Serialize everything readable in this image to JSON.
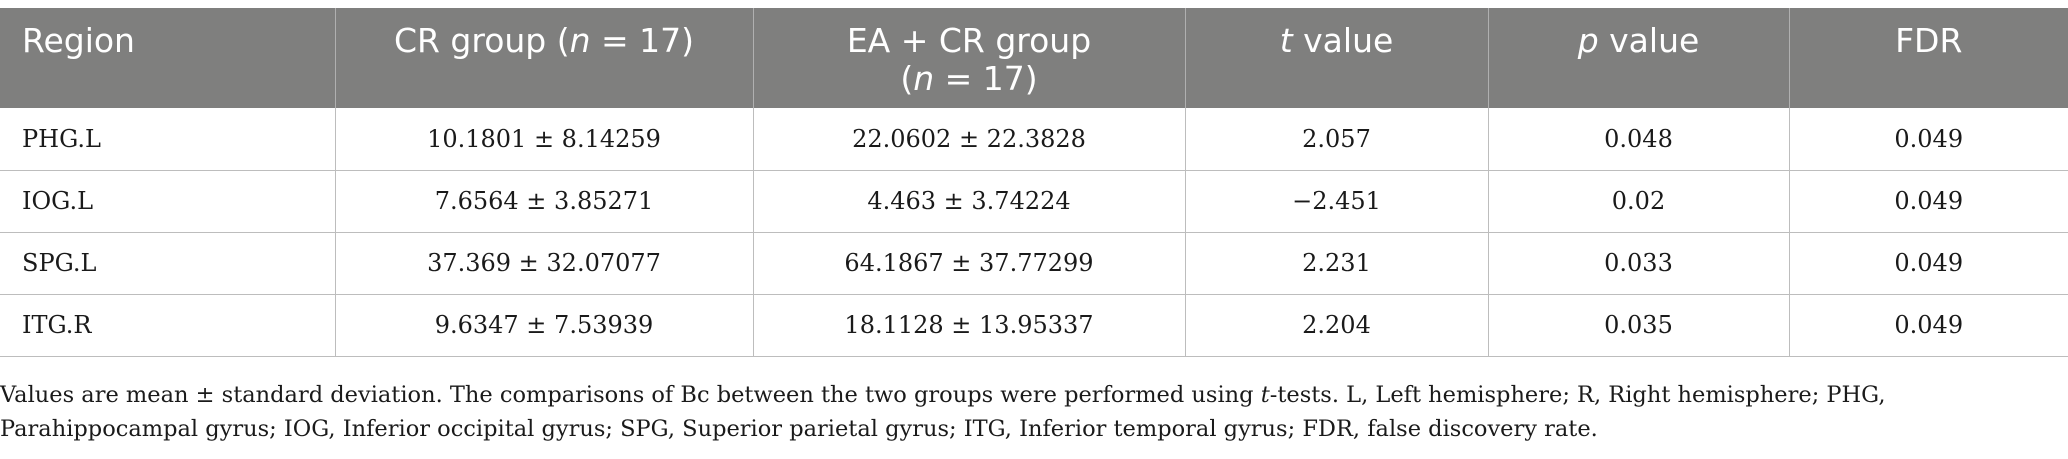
{
  "table": {
    "headers": {
      "region": "Region",
      "cr_pre": "CR group (",
      "cr_n": "n",
      "cr_post": " = 17)",
      "eacr_line1": "EA + CR group",
      "eacr_pre": "(",
      "eacr_n": "n",
      "eacr_post": " = 17)",
      "t_var": "t",
      "t_rest": " value",
      "p_var": "p",
      "p_rest": " value",
      "fdr": "FDR"
    },
    "rows": [
      {
        "region": "PHG.L",
        "cr": "10.1801 ± 8.14259",
        "eacr": "22.0602 ± 22.3828",
        "t": "2.057",
        "p": "0.048",
        "fdr": "0.049"
      },
      {
        "region": "IOG.L",
        "cr": "7.6564 ± 3.85271",
        "eacr": "4.463 ± 3.74224",
        "t": "−2.451",
        "p": "0.02",
        "fdr": "0.049"
      },
      {
        "region": "SPG.L",
        "cr": "37.369 ± 32.07077",
        "eacr": "64.1867 ± 37.77299",
        "t": "2.231",
        "p": "0.033",
        "fdr": "0.049"
      },
      {
        "region": "ITG.R",
        "cr": "9.6347 ± 7.53939",
        "eacr": "18.1128 ± 13.95337",
        "t": "2.204",
        "p": "0.035",
        "fdr": "0.049"
      }
    ]
  },
  "footnote": {
    "part1": "Values are mean ± standard deviation. The comparisons of Bc between the two groups were performed using ",
    "t_var": "t",
    "part2": "-tests. L, Left hemisphere; R, Right hemisphere; PHG, Parahippocampal gyrus; IOG, Inferior occipital gyrus; SPG, Superior parietal gyrus; ITG, Inferior temporal gyrus; FDR, false discovery rate."
  }
}
